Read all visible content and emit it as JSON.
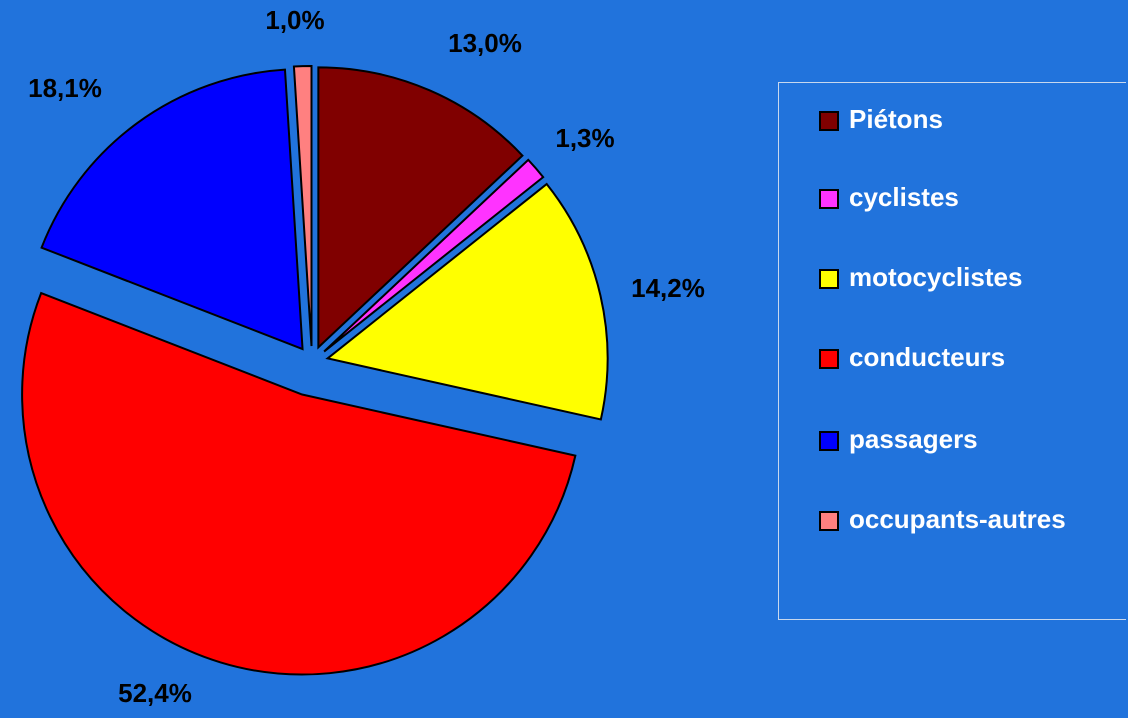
{
  "chart_data": {
    "type": "pie",
    "categories": [
      "Piétons",
      "cyclistes",
      "motocyclistes",
      "conducteurs",
      "passagers",
      "occupants-autres"
    ],
    "values": [
      13.0,
      1.3,
      14.2,
      52.4,
      18.1,
      1.0
    ],
    "value_labels": [
      "13,0%",
      "1,3%",
      "14,2%",
      "52,4%",
      "18,1%",
      "1,0%"
    ],
    "colors": [
      "#800000",
      "#ff33ff",
      "#ffff00",
      "#ff0000",
      "#0000ff",
      "#ff8080"
    ],
    "legend": "right"
  }
}
